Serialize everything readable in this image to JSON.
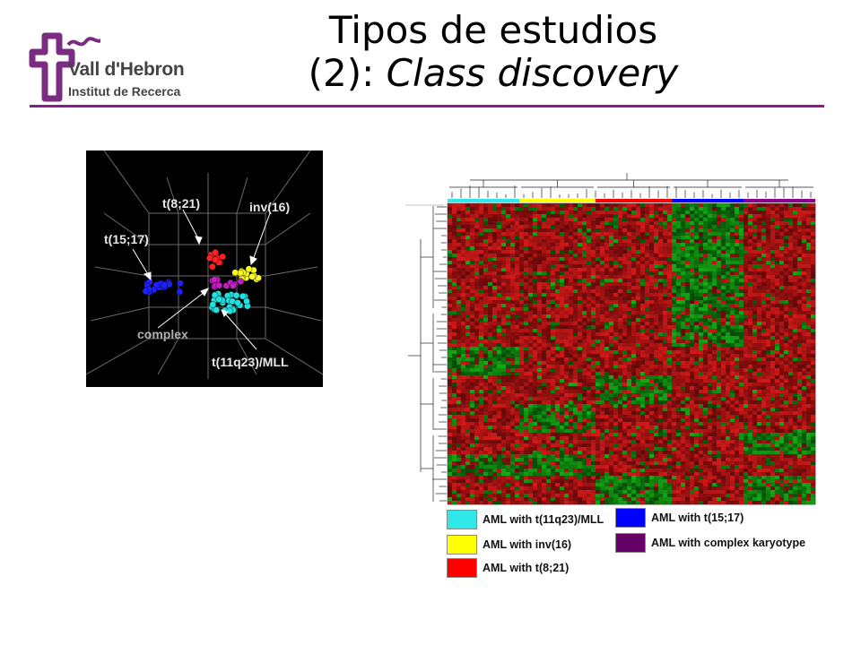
{
  "header": {
    "title_line1": "Tipos de estudios",
    "title_line2_prefix": "(2): ",
    "title_line2_italic": "Class discovery"
  },
  "logo": {
    "line1": "Vall d'Hebron",
    "line2": "Institut de Recerca",
    "color": "#7a2b82"
  },
  "scatter": {
    "labels": {
      "t821": "t(8;21)",
      "inv16": "inv(16)",
      "t1517": "t(15;17)",
      "complex": "complex",
      "t11q23": "t(11q23)/MLL"
    },
    "colors": {
      "t821": "#ff2020",
      "inv16": "#ffff20",
      "t1517": "#2020ff",
      "complex": "#c020c0",
      "t11q23": "#20e0e0"
    }
  },
  "legend": {
    "items": [
      {
        "label": "AML with t(11q23)/MLL",
        "color": "#30e8e8"
      },
      {
        "label": "AML with inv(16)",
        "color": "#ffff00"
      },
      {
        "label": "AML with t(8;21)",
        "color": "#ff0000"
      },
      {
        "label": "AML with t(15;17)",
        "color": "#0000ff"
      },
      {
        "label": "AML with complex karyotype",
        "color": "#660066"
      }
    ]
  },
  "heatmap": {
    "group_colors": [
      "#30e8e8",
      "#ffff00",
      "#ff0000",
      "#0000ff",
      "#8b008b"
    ]
  }
}
